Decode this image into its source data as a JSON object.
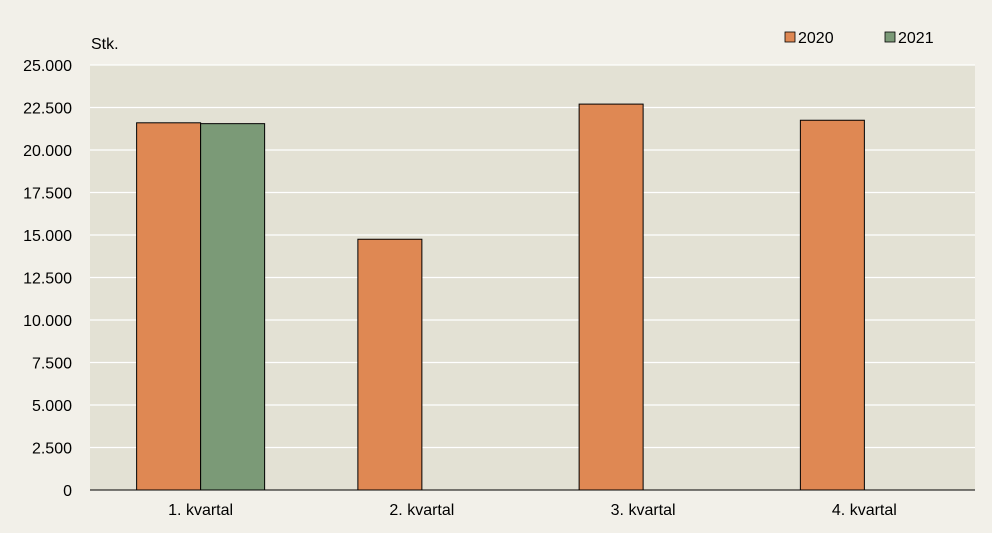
{
  "chart_data": {
    "type": "bar",
    "title": "",
    "ylabel": "Stk.",
    "xlabel": "",
    "categories": [
      "1. kvartal",
      "2. kvartal",
      "3. kvartal",
      "4. kvartal"
    ],
    "series": [
      {
        "name": "2020",
        "values": [
          21600,
          14750,
          22700,
          21750
        ],
        "color": "#df8853"
      },
      {
        "name": "2021",
        "values": [
          21550,
          null,
          null,
          null
        ],
        "color": "#7b9a77"
      }
    ],
    "ylim": [
      0,
      25000
    ],
    "yticks": [
      0,
      2500,
      5000,
      7500,
      10000,
      12500,
      15000,
      17500,
      20000,
      22500,
      25000
    ],
    "ytick_labels": [
      "0",
      "2.500",
      "5.000",
      "7.500",
      "10.000",
      "12.500",
      "15.000",
      "17.500",
      "20.000",
      "22.500",
      "25.000"
    ],
    "grid": true,
    "legend_position": "top-right",
    "colors": {
      "background": "#f2f0e9",
      "plot_area": "#e3e1d4",
      "gridline": "#ffffff"
    }
  }
}
